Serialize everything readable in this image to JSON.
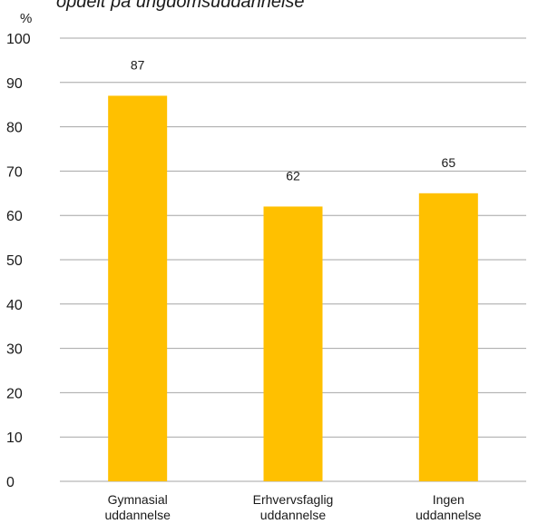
{
  "chart_data": {
    "type": "bar",
    "subtitle": "opdelt på ungdomsuddannelse",
    "ylabel": "%",
    "ylim": [
      0,
      100
    ],
    "yticks": [
      0,
      10,
      20,
      30,
      40,
      50,
      60,
      70,
      80,
      90,
      100
    ],
    "grid": true,
    "categories": [
      [
        "Gymnasial",
        "uddannelse"
      ],
      [
        "Erhvervsfaglig",
        "uddannelse"
      ],
      [
        "Ingen",
        "uddannelse"
      ]
    ],
    "values": [
      87,
      62,
      65
    ],
    "value_labels": [
      "87",
      "62",
      "65"
    ],
    "bar_color": "#FFC000",
    "grid_color": "#A6A6A6"
  }
}
